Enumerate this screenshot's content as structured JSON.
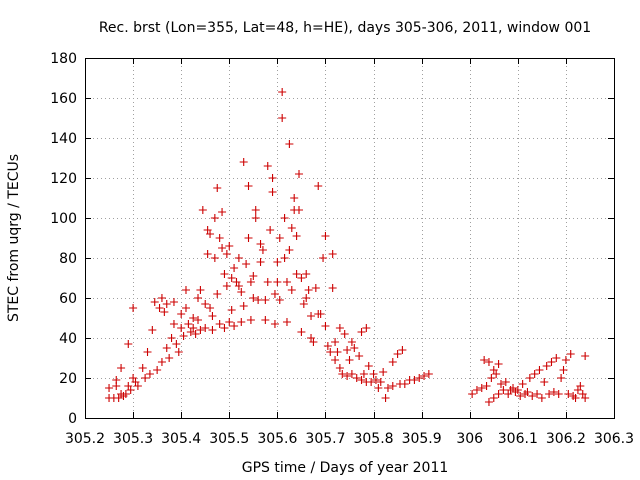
{
  "chart_data": {
    "type": "scatter",
    "title": "Rec. brst (Lon=355, Lat=48, h=HE), days 305-306, 2011, window 001",
    "xlabel": "GPS time / Days of year 2011",
    "ylabel": "STEC from uqrg / TECUs",
    "xlim": [
      305.2,
      306.3
    ],
    "ylim": [
      0,
      180
    ],
    "xticks": [
      305.2,
      305.3,
      305.4,
      305.5,
      305.6,
      305.7,
      305.8,
      305.9,
      306,
      306.1,
      306.2,
      306.3
    ],
    "xtick_labels": [
      "305.2",
      "305.3",
      "305.4",
      "305.5",
      "305.6",
      "305.7",
      "305.8",
      "305.9",
      "306",
      "306.1",
      "306.2",
      "306.3"
    ],
    "yticks": [
      0,
      20,
      40,
      60,
      80,
      100,
      120,
      140,
      160,
      180
    ],
    "ytick_labels": [
      "0",
      "20",
      "40",
      "60",
      "80",
      "100",
      "120",
      "140",
      "160",
      "180"
    ],
    "grid": true,
    "marker": "+",
    "color": "#cc0000",
    "series": [
      {
        "points": [
          [
            305.25,
            15
          ],
          [
            305.25,
            10
          ],
          [
            305.26,
            10
          ],
          [
            305.265,
            16
          ],
          [
            305.265,
            19
          ],
          [
            305.27,
            10
          ],
          [
            305.275,
            12
          ],
          [
            305.275,
            25
          ],
          [
            305.28,
            11
          ],
          [
            305.285,
            12
          ],
          [
            305.29,
            37
          ],
          [
            305.29,
            16
          ],
          [
            305.295,
            14
          ],
          [
            305.3,
            55
          ],
          [
            305.3,
            20
          ],
          [
            305.305,
            18
          ],
          [
            305.31,
            16
          ],
          [
            305.32,
            25
          ],
          [
            305.325,
            20
          ],
          [
            305.33,
            33
          ],
          [
            305.335,
            22
          ],
          [
            305.34,
            44
          ],
          [
            305.345,
            58
          ],
          [
            305.35,
            24
          ],
          [
            305.355,
            55
          ],
          [
            305.36,
            60
          ],
          [
            305.36,
            28
          ],
          [
            305.365,
            53
          ],
          [
            305.37,
            57
          ],
          [
            305.37,
            35
          ],
          [
            305.375,
            30
          ],
          [
            305.38,
            40
          ],
          [
            305.385,
            58
          ],
          [
            305.385,
            47
          ],
          [
            305.39,
            37
          ],
          [
            305.395,
            33
          ],
          [
            305.4,
            52
          ],
          [
            305.4,
            45
          ],
          [
            305.405,
            41
          ],
          [
            305.41,
            64
          ],
          [
            305.41,
            55
          ],
          [
            305.415,
            47
          ],
          [
            305.42,
            43
          ],
          [
            305.425,
            45
          ],
          [
            305.425,
            50
          ],
          [
            305.43,
            42
          ],
          [
            305.435,
            60
          ],
          [
            305.435,
            49
          ],
          [
            305.44,
            44
          ],
          [
            305.44,
            64
          ],
          [
            305.445,
            104
          ],
          [
            305.45,
            57
          ],
          [
            305.45,
            45
          ],
          [
            305.455,
            94
          ],
          [
            305.455,
            82
          ],
          [
            305.46,
            92
          ],
          [
            305.46,
            55
          ],
          [
            305.465,
            51
          ],
          [
            305.465,
            44
          ],
          [
            305.47,
            100
          ],
          [
            305.47,
            80
          ],
          [
            305.475,
            115
          ],
          [
            305.475,
            62
          ],
          [
            305.48,
            47
          ],
          [
            305.48,
            90
          ],
          [
            305.485,
            103
          ],
          [
            305.485,
            85
          ],
          [
            305.49,
            72
          ],
          [
            305.49,
            45
          ],
          [
            305.495,
            66
          ],
          [
            305.495,
            82
          ],
          [
            305.5,
            48
          ],
          [
            305.5,
            86
          ],
          [
            305.505,
            70
          ],
          [
            305.505,
            54
          ],
          [
            305.51,
            75
          ],
          [
            305.51,
            46
          ],
          [
            305.515,
            68
          ],
          [
            305.52,
            80
          ],
          [
            305.52,
            66
          ],
          [
            305.525,
            63
          ],
          [
            305.525,
            48
          ],
          [
            305.53,
            128
          ],
          [
            305.53,
            56
          ],
          [
            305.535,
            77
          ],
          [
            305.54,
            116
          ],
          [
            305.54,
            90
          ],
          [
            305.545,
            68
          ],
          [
            305.545,
            49
          ],
          [
            305.55,
            71
          ],
          [
            305.55,
            60
          ],
          [
            305.555,
            104
          ],
          [
            305.555,
            100
          ],
          [
            305.56,
            59
          ],
          [
            305.565,
            87
          ],
          [
            305.565,
            78
          ],
          [
            305.57,
            84
          ],
          [
            305.575,
            59
          ],
          [
            305.575,
            49
          ],
          [
            305.58,
            126
          ],
          [
            305.58,
            68
          ],
          [
            305.585,
            94
          ],
          [
            305.59,
            120
          ],
          [
            305.59,
            113
          ],
          [
            305.595,
            62
          ],
          [
            305.595,
            47
          ],
          [
            305.6,
            78
          ],
          [
            305.6,
            68
          ],
          [
            305.605,
            90
          ],
          [
            305.605,
            59
          ],
          [
            305.61,
            163
          ],
          [
            305.61,
            150
          ],
          [
            305.615,
            100
          ],
          [
            305.615,
            80
          ],
          [
            305.62,
            68
          ],
          [
            305.62,
            48
          ],
          [
            305.625,
            137
          ],
          [
            305.625,
            84
          ],
          [
            305.63,
            95
          ],
          [
            305.63,
            64
          ],
          [
            305.635,
            110
          ],
          [
            305.635,
            104
          ],
          [
            305.64,
            91
          ],
          [
            305.64,
            72
          ],
          [
            305.645,
            122
          ],
          [
            305.645,
            104
          ],
          [
            305.65,
            70
          ],
          [
            305.65,
            43
          ],
          [
            305.655,
            57
          ],
          [
            305.66,
            72
          ],
          [
            305.66,
            60
          ],
          [
            305.665,
            64
          ],
          [
            305.67,
            40
          ],
          [
            305.67,
            51
          ],
          [
            305.675,
            38
          ],
          [
            305.68,
            65
          ],
          [
            305.685,
            116
          ],
          [
            305.685,
            52
          ],
          [
            305.69,
            52
          ],
          [
            305.695,
            80
          ],
          [
            305.7,
            91
          ],
          [
            305.7,
            46
          ],
          [
            305.705,
            36
          ],
          [
            305.71,
            33
          ],
          [
            305.715,
            82
          ],
          [
            305.715,
            65
          ],
          [
            305.72,
            38
          ],
          [
            305.72,
            29
          ],
          [
            305.725,
            33
          ],
          [
            305.73,
            45
          ],
          [
            305.73,
            25
          ],
          [
            305.735,
            22
          ],
          [
            305.74,
            42
          ],
          [
            305.745,
            34
          ],
          [
            305.745,
            21
          ],
          [
            305.75,
            29
          ],
          [
            305.755,
            38
          ],
          [
            305.755,
            22
          ],
          [
            305.76,
            35
          ],
          [
            305.765,
            20
          ],
          [
            305.77,
            31
          ],
          [
            305.775,
            43
          ],
          [
            305.775,
            19
          ],
          [
            305.78,
            22
          ],
          [
            305.785,
            45
          ],
          [
            305.785,
            18
          ],
          [
            305.79,
            26
          ],
          [
            305.795,
            18
          ],
          [
            305.8,
            22
          ],
          [
            305.805,
            19
          ],
          [
            305.81,
            15
          ],
          [
            305.815,
            18
          ],
          [
            305.82,
            23
          ],
          [
            305.825,
            10
          ],
          [
            305.83,
            15
          ],
          [
            305.84,
            28
          ],
          [
            305.84,
            16
          ],
          [
            305.85,
            32
          ],
          [
            305.855,
            17
          ],
          [
            305.86,
            34
          ],
          [
            305.865,
            17
          ],
          [
            305.875,
            19
          ],
          [
            305.885,
            19
          ],
          [
            305.895,
            20
          ],
          [
            305.905,
            21
          ],
          [
            305.915,
            22
          ],
          [
            306.005,
            12
          ],
          [
            306.015,
            14
          ],
          [
            306.025,
            15
          ],
          [
            306.03,
            29
          ],
          [
            306.035,
            16
          ],
          [
            306.04,
            28
          ],
          [
            306.04,
            8
          ],
          [
            306.045,
            20
          ],
          [
            306.05,
            10
          ],
          [
            306.05,
            24
          ],
          [
            306.055,
            22
          ],
          [
            306.06,
            27
          ],
          [
            306.06,
            12
          ],
          [
            306.065,
            17
          ],
          [
            306.07,
            14
          ],
          [
            306.075,
            18
          ],
          [
            306.08,
            12
          ],
          [
            306.085,
            14
          ],
          [
            306.09,
            15
          ],
          [
            306.095,
            13
          ],
          [
            306.1,
            14
          ],
          [
            306.105,
            11
          ],
          [
            306.11,
            17
          ],
          [
            306.115,
            12
          ],
          [
            306.12,
            13
          ],
          [
            306.125,
            20
          ],
          [
            306.13,
            11
          ],
          [
            306.135,
            22
          ],
          [
            306.14,
            12
          ],
          [
            306.145,
            24
          ],
          [
            306.15,
            10
          ],
          [
            306.155,
            18
          ],
          [
            306.16,
            26
          ],
          [
            306.165,
            12
          ],
          [
            306.17,
            28
          ],
          [
            306.175,
            13
          ],
          [
            306.18,
            30
          ],
          [
            306.185,
            12
          ],
          [
            306.19,
            20
          ],
          [
            306.195,
            24
          ],
          [
            306.2,
            29
          ],
          [
            306.205,
            12
          ],
          [
            306.21,
            32
          ],
          [
            306.215,
            11
          ],
          [
            306.22,
            10
          ],
          [
            306.225,
            14
          ],
          [
            306.23,
            16
          ],
          [
            306.235,
            12
          ],
          [
            306.24,
            10
          ],
          [
            306.24,
            31
          ]
        ]
      }
    ]
  }
}
